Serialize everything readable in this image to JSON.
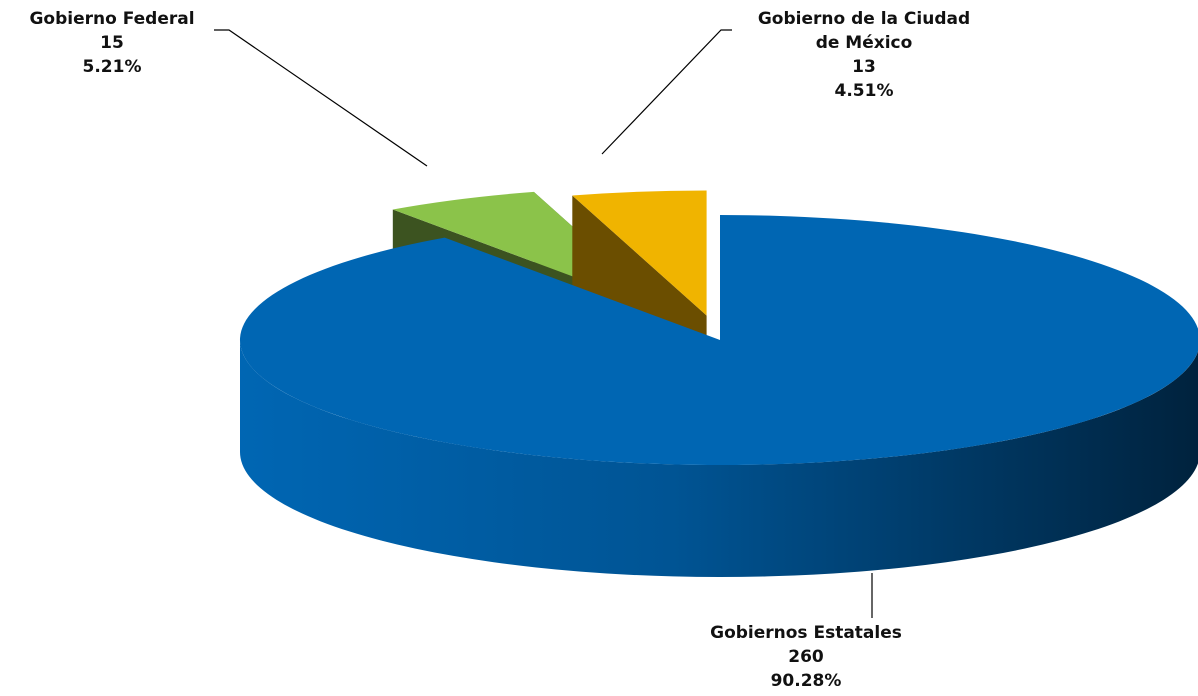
{
  "chart_data": {
    "type": "pie",
    "title": "",
    "three_d": true,
    "exploded": true,
    "slices": [
      {
        "label_lines": [
          "Gobiernos Estatales"
        ],
        "value": 260,
        "value_text": "260",
        "percent": 90.28,
        "percent_text": "90.28%",
        "color_top": "#0066b3",
        "color_side": "#00304f"
      },
      {
        "label_lines": [
          "Gobierno Federal"
        ],
        "value": 15,
        "value_text": "15",
        "percent": 5.21,
        "percent_text": "5.21%",
        "color_top": "#8bc34a",
        "color_side": "#3c5320"
      },
      {
        "label_lines": [
          "Gobierno de la Ciudad",
          "de México"
        ],
        "value": 13,
        "value_text": "13",
        "percent": 4.51,
        "percent_text": "4.51%",
        "color_top": "#f0b400",
        "color_side": "#6b4e00"
      }
    ]
  }
}
